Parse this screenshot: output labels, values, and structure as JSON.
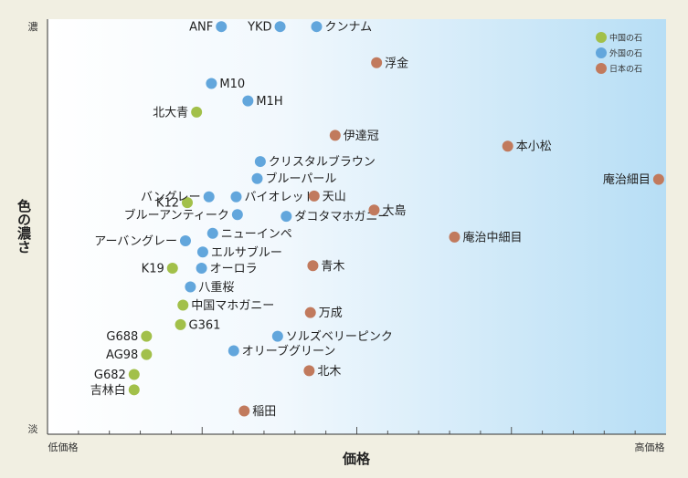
{
  "chart_data": {
    "type": "scatter",
    "title": "",
    "xlabel": "価格",
    "ylabel": "色の濃さ",
    "x_tick_low": "低価格",
    "x_tick_high": "高価格",
    "y_tick_high": "濃",
    "y_tick_low": "淡",
    "xlim": [
      0,
      100
    ],
    "ylim": [
      0,
      100
    ],
    "legend_position": "top-right",
    "series": [
      {
        "name": "中国の石",
        "color": "#a2c04a",
        "points": [
          {
            "label": "北大青",
            "x": 24.1,
            "y": 77.6,
            "label_side": "left"
          },
          {
            "label": "K12",
            "x": 22.6,
            "y": 55.8,
            "label_side": "left"
          },
          {
            "label": "K19",
            "x": 20.2,
            "y": 40.0,
            "label_side": "left"
          },
          {
            "label": "中国マホガニー",
            "x": 21.9,
            "y": 31.1,
            "label_side": "right"
          },
          {
            "label": "G361",
            "x": 21.5,
            "y": 26.4,
            "label_side": "right"
          },
          {
            "label": "G688",
            "x": 16.0,
            "y": 23.6,
            "label_side": "left"
          },
          {
            "label": "AG98",
            "x": 16.0,
            "y": 19.2,
            "label_side": "left"
          },
          {
            "label": "G682",
            "x": 14.0,
            "y": 14.4,
            "label_side": "left"
          },
          {
            "label": "吉林白",
            "x": 14.0,
            "y": 10.7,
            "label_side": "left"
          }
        ]
      },
      {
        "name": "外国の石",
        "color": "#62a6dc",
        "points": [
          {
            "label": "ANF",
            "x": 28.1,
            "y": 98.2,
            "label_side": "left"
          },
          {
            "label": "YKD",
            "x": 37.6,
            "y": 98.2,
            "label_side": "left"
          },
          {
            "label": "クンナム",
            "x": 43.5,
            "y": 98.2,
            "label_side": "right"
          },
          {
            "label": "M10",
            "x": 26.5,
            "y": 84.5,
            "label_side": "right"
          },
          {
            "label": "M1H",
            "x": 32.4,
            "y": 80.3,
            "label_side": "right"
          },
          {
            "label": "クリスタルブラウン",
            "x": 34.4,
            "y": 65.7,
            "label_side": "right"
          },
          {
            "label": "ブルーパール",
            "x": 33.9,
            "y": 61.6,
            "label_side": "right"
          },
          {
            "label": "バングレー",
            "x": 26.1,
            "y": 57.2,
            "label_side": "left"
          },
          {
            "label": "バイオレット",
            "x": 30.5,
            "y": 57.2,
            "label_side": "right"
          },
          {
            "label": "ブルーアンティーク",
            "x": 30.7,
            "y": 52.9,
            "label_side": "left"
          },
          {
            "label": "ダコタマホガニー",
            "x": 38.6,
            "y": 52.5,
            "label_side": "right"
          },
          {
            "label": "ニューインペ",
            "x": 26.7,
            "y": 48.4,
            "label_side": "right"
          },
          {
            "label": "アーバングレー",
            "x": 22.3,
            "y": 46.6,
            "label_side": "left"
          },
          {
            "label": "エルサブルー",
            "x": 25.1,
            "y": 43.9,
            "label_side": "right"
          },
          {
            "label": "オーロラ",
            "x": 24.9,
            "y": 40.0,
            "label_side": "right"
          },
          {
            "label": "八重桜",
            "x": 23.1,
            "y": 35.5,
            "label_side": "right"
          },
          {
            "label": "ソルズベリーピンク",
            "x": 37.2,
            "y": 23.6,
            "label_side": "right"
          },
          {
            "label": "オリーブグリーン",
            "x": 30.1,
            "y": 20.1,
            "label_side": "right"
          }
        ]
      },
      {
        "name": "日本の石",
        "color": "#c17a5d",
        "points": [
          {
            "label": "浮金",
            "x": 53.2,
            "y": 89.5,
            "label_side": "right"
          },
          {
            "label": "伊達冠",
            "x": 46.5,
            "y": 72.0,
            "label_side": "right"
          },
          {
            "label": "本小松",
            "x": 74.4,
            "y": 69.4,
            "label_side": "right"
          },
          {
            "label": "庵治細目",
            "x": 98.8,
            "y": 61.4,
            "label_side": "left"
          },
          {
            "label": "天山",
            "x": 43.1,
            "y": 57.4,
            "label_side": "right"
          },
          {
            "label": "大島",
            "x": 52.8,
            "y": 54.0,
            "label_side": "right"
          },
          {
            "label": "庵治中細目",
            "x": 65.8,
            "y": 47.5,
            "label_side": "right"
          },
          {
            "label": "青木",
            "x": 42.9,
            "y": 40.6,
            "label_side": "right"
          },
          {
            "label": "万成",
            "x": 42.5,
            "y": 29.3,
            "label_side": "right"
          },
          {
            "label": "北木",
            "x": 42.3,
            "y": 15.3,
            "label_side": "right"
          },
          {
            "label": "稲田",
            "x": 31.8,
            "y": 5.6,
            "label_side": "right"
          }
        ]
      }
    ]
  }
}
